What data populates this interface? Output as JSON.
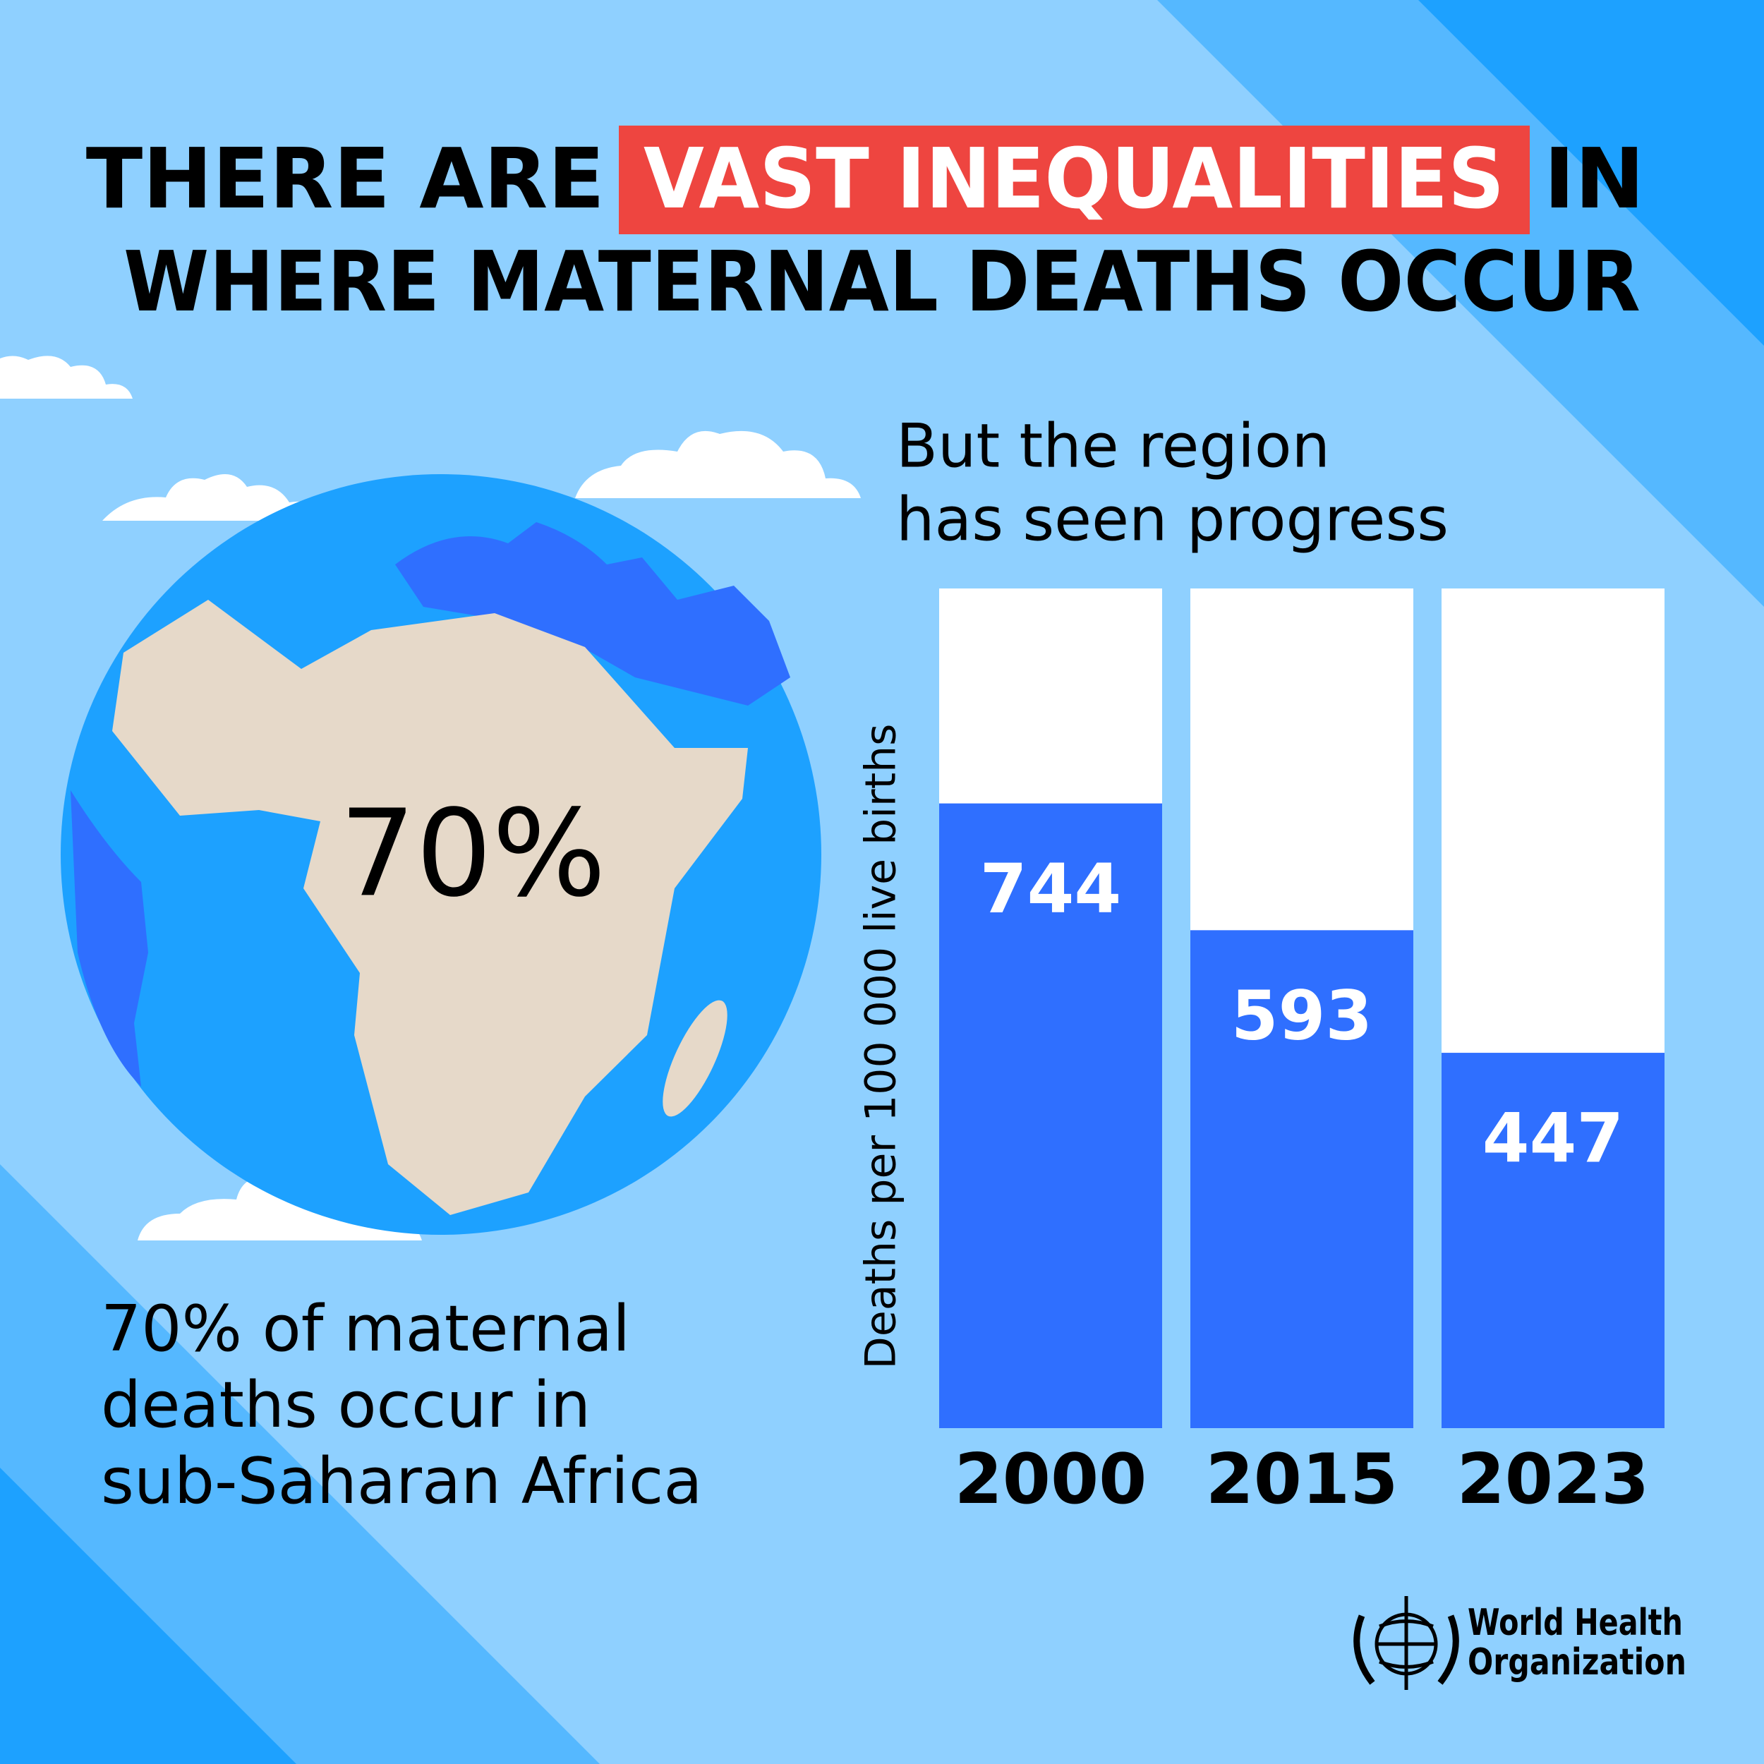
{
  "header": {
    "title_start": "THERE ARE",
    "title_highlight": "VAST INEQUALITIES",
    "title_end": "IN",
    "title_line2": "WHERE MATERNAL DEATHS OCCUR"
  },
  "globe": {
    "label": "70%",
    "caption": [
      "70% of maternal",
      "deaths occur in",
      "sub-Saharan Africa"
    ]
  },
  "chart_data": {
    "type": "bar",
    "subtitle": [
      "But the region",
      "has seen progress"
    ],
    "y_label": "Deaths per 100 000 live births",
    "categories": [
      "2000",
      "2015",
      "2023"
    ],
    "values": [
      744,
      593,
      447
    ],
    "color": "#2f6fff",
    "track_color": "#ffffff",
    "ylim": [
      0,
      1000
    ]
  },
  "logo": {
    "lines": [
      "World Health",
      "Organization"
    ]
  }
}
